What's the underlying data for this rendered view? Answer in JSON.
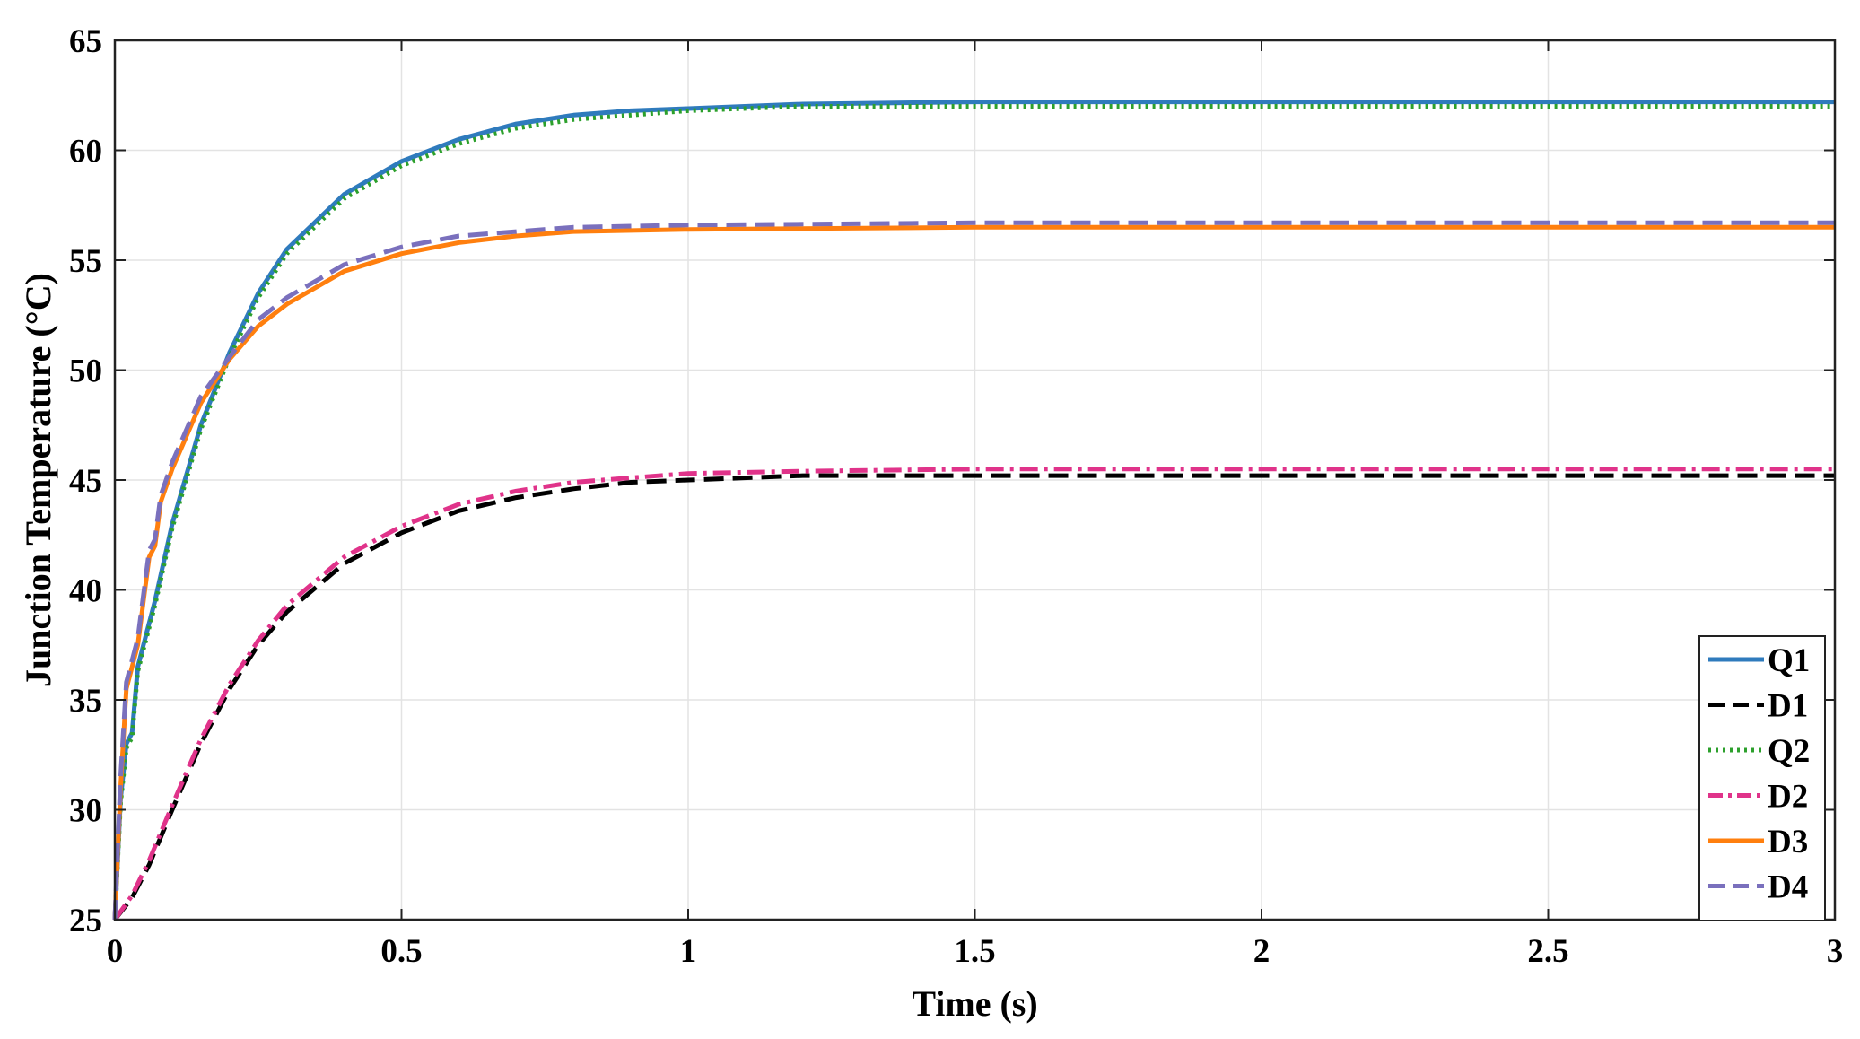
{
  "chart_data": {
    "type": "line",
    "title": "",
    "xlabel": "Time (s)",
    "ylabel": "Junction Temperature (°C)",
    "xlim": [
      0,
      3
    ],
    "ylim": [
      25,
      65
    ],
    "xticks": [
      0,
      0.5,
      1,
      1.5,
      2,
      2.5,
      3
    ],
    "xtick_labels": [
      "0",
      "0.5",
      "1",
      "1.5",
      "2",
      "2.5",
      "3"
    ],
    "yticks": [
      25,
      30,
      35,
      40,
      45,
      50,
      55,
      60,
      65
    ],
    "ytick_labels": [
      "25",
      "30",
      "35",
      "40",
      "45",
      "50",
      "55",
      "60",
      "65"
    ],
    "grid": true,
    "legend_position": "bottom-right",
    "series": [
      {
        "name": "Q1",
        "color": "#2f7bbd",
        "style": "solid",
        "x": [
          0,
          0.01,
          0.02,
          0.03,
          0.04,
          0.05,
          0.07,
          0.1,
          0.15,
          0.2,
          0.25,
          0.3,
          0.4,
          0.5,
          0.6,
          0.7,
          0.8,
          0.9,
          1.0,
          1.2,
          1.5,
          2.0,
          2.5,
          3.0
        ],
        "values": [
          25,
          30.5,
          33.0,
          33.5,
          36.5,
          37.5,
          39.5,
          43.0,
          47.5,
          50.8,
          53.5,
          55.5,
          58.0,
          59.5,
          60.5,
          61.2,
          61.6,
          61.8,
          61.9,
          62.1,
          62.2,
          62.2,
          62.2,
          62.2
        ]
      },
      {
        "name": "D1",
        "color": "#000000",
        "style": "dashed",
        "x": [
          0,
          0.03,
          0.06,
          0.1,
          0.15,
          0.2,
          0.25,
          0.3,
          0.4,
          0.5,
          0.6,
          0.7,
          0.8,
          0.9,
          1.0,
          1.2,
          1.5,
          2.0,
          2.5,
          3.0
        ],
        "values": [
          25,
          26.0,
          27.5,
          30.0,
          33.0,
          35.5,
          37.5,
          39.0,
          41.2,
          42.6,
          43.6,
          44.2,
          44.6,
          44.9,
          45.0,
          45.2,
          45.2,
          45.2,
          45.2,
          45.2
        ]
      },
      {
        "name": "Q2",
        "color": "#2ca02c",
        "style": "dotted",
        "x": [
          0,
          0.01,
          0.02,
          0.03,
          0.04,
          0.05,
          0.07,
          0.1,
          0.15,
          0.2,
          0.25,
          0.3,
          0.4,
          0.5,
          0.6,
          0.7,
          0.8,
          0.9,
          1.0,
          1.2,
          1.5,
          2.0,
          2.5,
          3.0
        ],
        "values": [
          25,
          30.3,
          32.8,
          33.3,
          36.3,
          37.3,
          39.3,
          42.8,
          47.3,
          50.6,
          53.3,
          55.3,
          57.8,
          59.3,
          60.3,
          61.0,
          61.4,
          61.6,
          61.8,
          62.0,
          62.0,
          62.0,
          62.0,
          62.0
        ]
      },
      {
        "name": "D2",
        "color": "#e0338a",
        "style": "dashdot",
        "x": [
          0,
          0.03,
          0.06,
          0.1,
          0.15,
          0.2,
          0.25,
          0.3,
          0.4,
          0.5,
          0.6,
          0.7,
          0.8,
          0.9,
          1.0,
          1.2,
          1.5,
          2.0,
          2.5,
          3.0
        ],
        "values": [
          25,
          26.1,
          27.7,
          30.2,
          33.2,
          35.7,
          37.7,
          39.3,
          41.5,
          42.9,
          43.9,
          44.5,
          44.9,
          45.1,
          45.3,
          45.4,
          45.5,
          45.5,
          45.5,
          45.5
        ]
      },
      {
        "name": "D3",
        "color": "#ff7f0e",
        "style": "solid",
        "x": [
          0,
          0.005,
          0.01,
          0.02,
          0.03,
          0.04,
          0.05,
          0.06,
          0.07,
          0.08,
          0.1,
          0.15,
          0.2,
          0.25,
          0.3,
          0.4,
          0.5,
          0.6,
          0.7,
          0.8,
          1.0,
          1.5,
          2.0,
          2.5,
          3.0
        ],
        "values": [
          25,
          28.0,
          31.0,
          35.5,
          36.5,
          37.5,
          39.5,
          41.5,
          42.0,
          44.0,
          45.5,
          48.5,
          50.5,
          52.0,
          53.0,
          54.5,
          55.3,
          55.8,
          56.1,
          56.3,
          56.4,
          56.5,
          56.5,
          56.5,
          56.5
        ]
      },
      {
        "name": "D4",
        "color": "#7a70bd",
        "style": "dashed",
        "x": [
          0,
          0.005,
          0.01,
          0.02,
          0.03,
          0.04,
          0.05,
          0.06,
          0.07,
          0.08,
          0.1,
          0.15,
          0.2,
          0.25,
          0.3,
          0.4,
          0.5,
          0.6,
          0.7,
          0.8,
          1.0,
          1.5,
          2.0,
          2.5,
          3.0
        ],
        "values": [
          25,
          28.3,
          31.5,
          35.8,
          36.8,
          37.8,
          39.8,
          41.8,
          42.3,
          44.3,
          45.8,
          48.8,
          50.6,
          52.3,
          53.3,
          54.8,
          55.6,
          56.1,
          56.3,
          56.5,
          56.6,
          56.7,
          56.7,
          56.7,
          56.7
        ]
      }
    ]
  }
}
